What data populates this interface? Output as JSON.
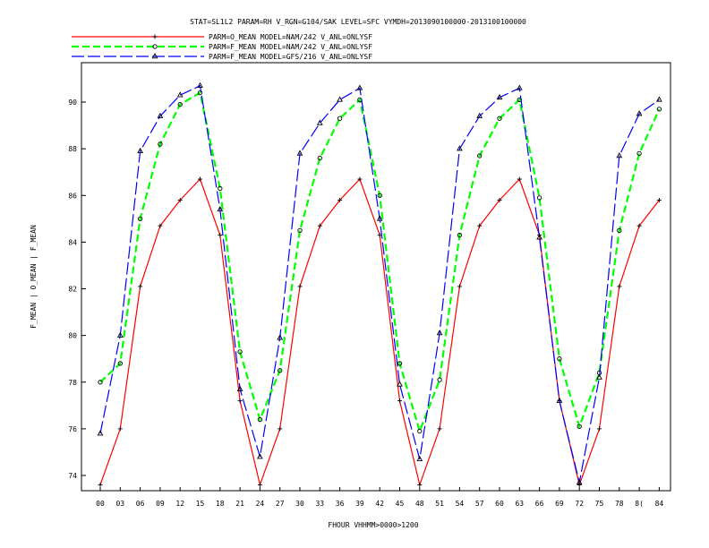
{
  "chart_data": {
    "type": "line",
    "title": "STAT=SL1L2 PARAM=RH V_RGN=G104/SAK LEVEL=SFC VYMDH=2013090100000-2013100100000",
    "xlabel": "FHOUR VHHMM>0000>1200",
    "ylabel": "F_MEAN | O_MEAN | F_MEAN",
    "ylim": [
      73,
      91
    ],
    "yticks": [
      74,
      76,
      78,
      80,
      82,
      84,
      86,
      88,
      90
    ],
    "grid": false,
    "legend_position": "top-left",
    "categories": [
      "00",
      "03",
      "06",
      "09",
      "12",
      "15",
      "18",
      "21",
      "24",
      "27",
      "30",
      "33",
      "36",
      "39",
      "42",
      "45",
      "48",
      "51",
      "54",
      "57",
      "60",
      "63",
      "66",
      "69",
      "72",
      "75",
      "78",
      "81",
      "84"
    ],
    "tick_labels": [
      "00",
      "03",
      "06",
      "09",
      "12",
      "15",
      "18",
      "21",
      "24",
      "27",
      "30",
      "33",
      "36",
      "39",
      "42",
      "45",
      "48",
      "51",
      "54",
      "57",
      "60",
      "63",
      "66",
      "69",
      "72",
      "75",
      "78",
      "8(",
      "84"
    ],
    "series": [
      {
        "name": "PARM=O_MEAN MODEL=NAM/242 V_ANL=ONLYSF",
        "color": "#ff0000",
        "dash": "solid",
        "marker": "plus",
        "values": [
          73.6,
          76.0,
          82.1,
          84.7,
          85.8,
          86.7,
          84.3,
          77.2,
          73.6,
          76.0,
          82.1,
          84.7,
          85.8,
          86.7,
          84.3,
          77.2,
          73.6,
          76.0,
          82.1,
          84.7,
          85.8,
          86.7,
          84.3,
          77.2,
          73.6,
          76.0,
          82.1,
          84.7,
          85.8
        ]
      },
      {
        "name": "PARM=F_MEAN MODEL=NAM/242 V_ANL=ONLYSF",
        "color": "#00ff00",
        "dash": "dashed",
        "marker": "diamond",
        "values": [
          78.0,
          78.8,
          85.0,
          88.2,
          89.9,
          90.4,
          86.3,
          79.3,
          76.4,
          78.5,
          84.5,
          87.6,
          89.3,
          90.1,
          86.0,
          78.8,
          75.9,
          78.1,
          84.3,
          87.7,
          89.3,
          90.1,
          85.9,
          79.0,
          76.1,
          78.4,
          84.5,
          87.8,
          89.7
        ]
      },
      {
        "name": "PARM=F_MEAN MODEL=GFS/216 V_ANL=ONLYSF",
        "color": "#0000ff",
        "dash": "longdash",
        "marker": "triangle",
        "values": [
          75.8,
          80.0,
          87.9,
          89.4,
          90.3,
          90.7,
          85.4,
          77.7,
          74.8,
          79.9,
          87.8,
          89.1,
          90.1,
          90.6,
          85.0,
          77.9,
          74.7,
          80.1,
          88.0,
          89.4,
          90.2,
          90.6,
          84.2,
          77.2,
          73.7,
          78.2,
          87.7,
          89.5,
          90.1
        ]
      }
    ]
  }
}
